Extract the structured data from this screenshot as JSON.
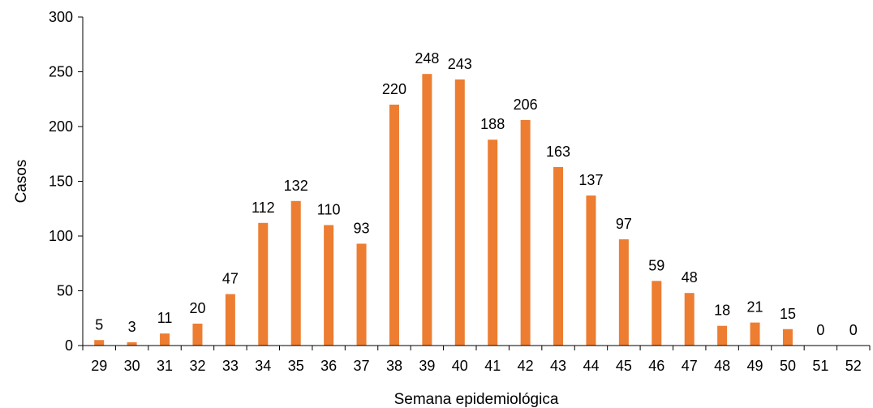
{
  "chart_data": {
    "type": "bar",
    "title": "",
    "xlabel": "Semana epidemiológica",
    "ylabel": "Casos",
    "ylim": [
      0,
      300
    ],
    "yticks": [
      0,
      50,
      100,
      150,
      200,
      250,
      300
    ],
    "grid": false,
    "legend": "none",
    "categories": [
      "29",
      "30",
      "31",
      "32",
      "33",
      "34",
      "35",
      "36",
      "37",
      "38",
      "39",
      "40",
      "41",
      "42",
      "43",
      "44",
      "45",
      "46",
      "47",
      "48",
      "49",
      "50",
      "51",
      "52"
    ],
    "values": [
      5,
      3,
      11,
      20,
      47,
      112,
      132,
      110,
      93,
      220,
      248,
      243,
      188,
      206,
      163,
      137,
      97,
      59,
      48,
      18,
      21,
      15,
      0,
      0
    ],
    "colors": {
      "bar": "#ED7D31",
      "axis": "#000000",
      "text": "#000000"
    }
  }
}
